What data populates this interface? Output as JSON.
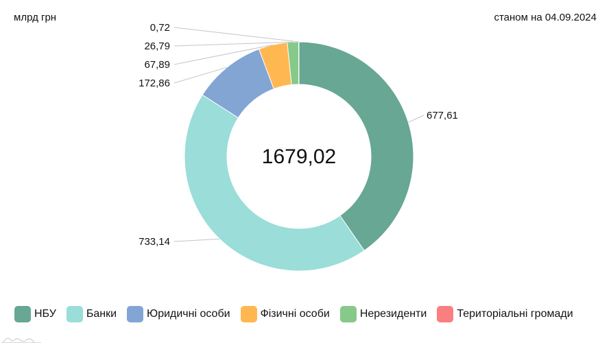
{
  "header": {
    "unit": "млрд грн",
    "as_of": "станом на 04.09.2024"
  },
  "chart_data": {
    "type": "pie",
    "total_label": "1679,02",
    "slices": [
      {
        "name": "НБУ",
        "value": 677.61,
        "label": "677,61",
        "color": "#67a793"
      },
      {
        "name": "Банки",
        "value": 733.14,
        "label": "733,14",
        "color": "#9addd9"
      },
      {
        "name": "Юридичні особи",
        "value": 172.86,
        "label": "172,86",
        "color": "#82a5d4"
      },
      {
        "name": "Фізичні особи",
        "value": 67.89,
        "label": "67,89",
        "color": "#ffb851"
      },
      {
        "name": "Нерезиденти",
        "value": 26.79,
        "label": "26,79",
        "color": "#86c989"
      },
      {
        "name": "Територіальні громади",
        "value": 0.72,
        "label": "0,72",
        "color": "#fb7e80"
      }
    ]
  }
}
